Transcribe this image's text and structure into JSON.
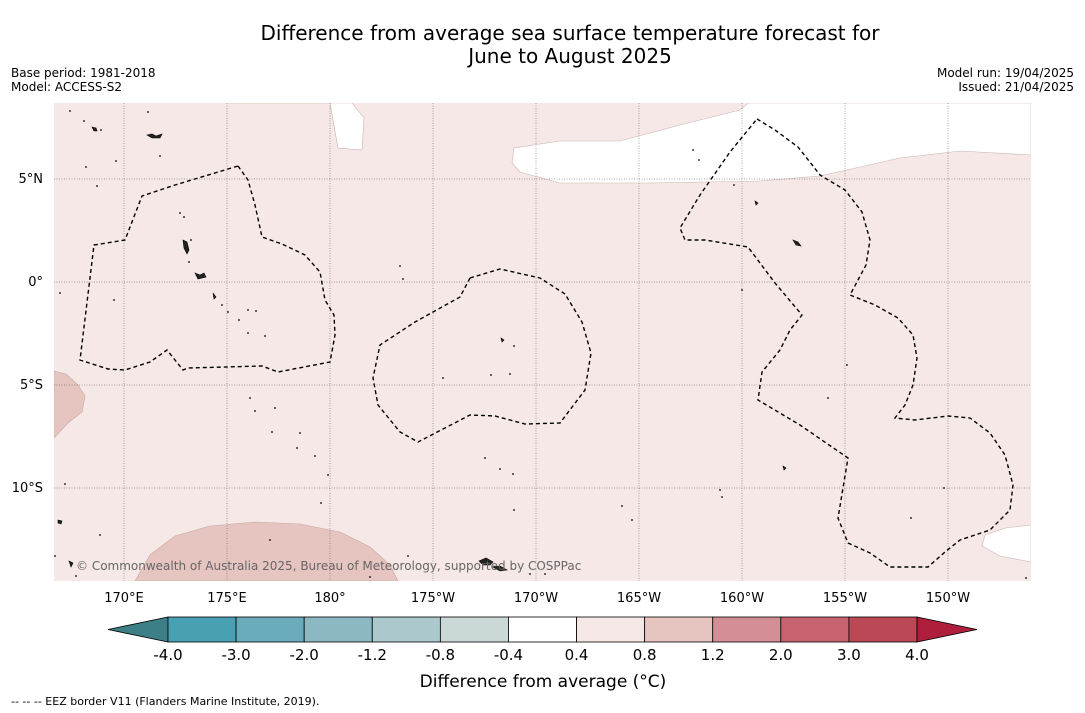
{
  "title_line1": "Difference from average sea surface temperature forecast for",
  "title_line2": "June to August 2025",
  "base_period": "Base period: 1981-2018",
  "model": "Model: ACCESS-S2",
  "model_run": "Model run: 19/04/2025",
  "issued": "Issued: 21/04/2025",
  "lat_labels": [
    "5°N",
    "0°",
    "5°S",
    "10°S"
  ],
  "lon_labels": [
    "170°E",
    "175°E",
    "180°",
    "175°W",
    "170°W",
    "165°W",
    "160°W",
    "155°W",
    "150°W"
  ],
  "copyright": "© Commonwealth of Australia 2025, Bureau of Meteorology, supported by COSPPac",
  "colorbar": {
    "title": "Difference from average (°C)",
    "ticks": [
      "-4.0",
      "-3.0",
      "-2.0",
      "-1.2",
      "-0.8",
      "-0.4",
      "0.4",
      "0.8",
      "1.2",
      "2.0",
      "3.0",
      "4.0"
    ],
    "colors": {
      "under": "#3d7f86",
      "bins": [
        "#48a1b3",
        "#6aacbb",
        "#8bb8c3",
        "#abc9cd",
        "#cad8d8",
        "#ffffff",
        "#f5e8e6",
        "#e6c4bf",
        "#d48f96",
        "#c7636e",
        "#bb4955"
      ],
      "over": "#b01e3e"
    }
  },
  "eez_note": "-- -- -- EEZ border V11 (Flanders Marine Institute, 2019)."
}
